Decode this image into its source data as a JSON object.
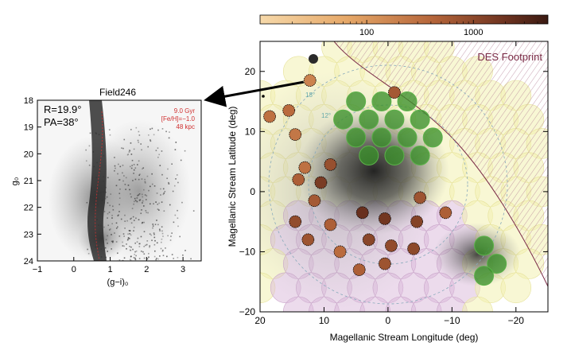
{
  "chart_data": [
    {
      "type": "scatter",
      "title": "Field246",
      "xlabel": "(g−i)₀",
      "ylabel": "g₀",
      "xlim": [
        -1,
        3.5
      ],
      "ylim": [
        24,
        18
      ],
      "xticks": [
        "−1",
        "0",
        "1",
        "2",
        "3"
      ],
      "xtick_values": [
        -1,
        0,
        1,
        2,
        3
      ],
      "yticks": [
        "18",
        "19",
        "20",
        "21",
        "22",
        "23",
        "24"
      ],
      "ytick_values": [
        18,
        19,
        20,
        21,
        22,
        23,
        24
      ],
      "annot_r": "R=19.9°",
      "annot_pa": "PA=38°",
      "isochrone_age": "9.0 Gyr",
      "isochrone_feh": "[Fe/H]=−1.0",
      "isochrone_dist": "48 kpc",
      "isochrone_color": "#d03030"
    },
    {
      "type": "scatter",
      "xlabel": "Magellanic Stream Longitude (deg)",
      "ylabel": "Magellanic Stream Latitude (deg)",
      "xlim": [
        20,
        -25
      ],
      "ylim": [
        -20,
        25
      ],
      "xticks": [
        "20",
        "10",
        "0",
        "−10",
        "−20"
      ],
      "xtick_values": [
        20,
        10,
        0,
        -10,
        -20
      ],
      "yticks": [
        "20",
        "10",
        "0",
        "−10",
        "−20"
      ],
      "ytick_values": [
        20,
        10,
        0,
        -10,
        -20
      ],
      "footprint_label": "DES Footprint",
      "footprint_color": "#7a2a45",
      "colorbar": {
        "range": [
          10,
          5000
        ],
        "scale": "log",
        "ticks": [
          "100",
          "1000"
        ],
        "tick_values": [
          100,
          1000
        ]
      },
      "circle_labels": [
        "18°",
        "12°"
      ],
      "green_fields": [
        [
          5,
          15
        ],
        [
          1,
          15
        ],
        [
          -3,
          15
        ],
        [
          7,
          12
        ],
        [
          3,
          12
        ],
        [
          -1,
          12
        ],
        [
          -5,
          12
        ],
        [
          5,
          9
        ],
        [
          1,
          9
        ],
        [
          -3,
          9
        ],
        [
          -7,
          9
        ],
        [
          3,
          6
        ],
        [
          -1,
          6
        ],
        [
          -5,
          6
        ],
        [
          -15,
          -9
        ],
        [
          -17,
          -12
        ],
        [
          -15,
          -14
        ]
      ],
      "fields": [
        {
          "lon": 12.2,
          "lat": 18.5,
          "value": 180
        },
        {
          "lon": 18.5,
          "lat": 12.5,
          "value": 300
        },
        {
          "lon": 15.5,
          "lat": 13.5,
          "value": 350
        },
        {
          "lon": 14.5,
          "lat": 9.5,
          "value": 250
        },
        {
          "lon": -1.0,
          "lat": 16.5,
          "value": 600
        },
        {
          "lon": 13.0,
          "lat": 4.0,
          "value": 300
        },
        {
          "lon": 9.0,
          "lat": 4.5,
          "value": 800
        },
        {
          "lon": 14.0,
          "lat": 2.0,
          "value": 500
        },
        {
          "lon": 10.5,
          "lat": 1.5,
          "value": 1500
        },
        {
          "lon": 11.5,
          "lat": -1.5,
          "value": 600
        },
        {
          "lon": -5.0,
          "lat": -1.0,
          "value": 700
        },
        {
          "lon": 4.0,
          "lat": -3.5,
          "value": 2200
        },
        {
          "lon": -9.0,
          "lat": -3.5,
          "value": 500
        },
        {
          "lon": 0.5,
          "lat": -4.5,
          "value": 1800
        },
        {
          "lon": -4.5,
          "lat": -5.0,
          "value": 1200
        },
        {
          "lon": 14.5,
          "lat": -5.0,
          "value": 900
        },
        {
          "lon": 9.0,
          "lat": -5.5,
          "value": 500
        },
        {
          "lon": 12.5,
          "lat": -8.0,
          "value": 700
        },
        {
          "lon": 3.0,
          "lat": -8.0,
          "value": 1100
        },
        {
          "lon": -0.5,
          "lat": -9.0,
          "value": 900
        },
        {
          "lon": -4.0,
          "lat": -9.5,
          "value": 1000
        },
        {
          "lon": 7.5,
          "lat": -10.0,
          "value": 350
        },
        {
          "lon": 0.5,
          "lat": -12.0,
          "value": 700
        },
        {
          "lon": 4.5,
          "lat": -13.0,
          "value": 500
        }
      ]
    }
  ],
  "arrow_target_field": {
    "lon": 12.2,
    "lat": 18.5
  }
}
